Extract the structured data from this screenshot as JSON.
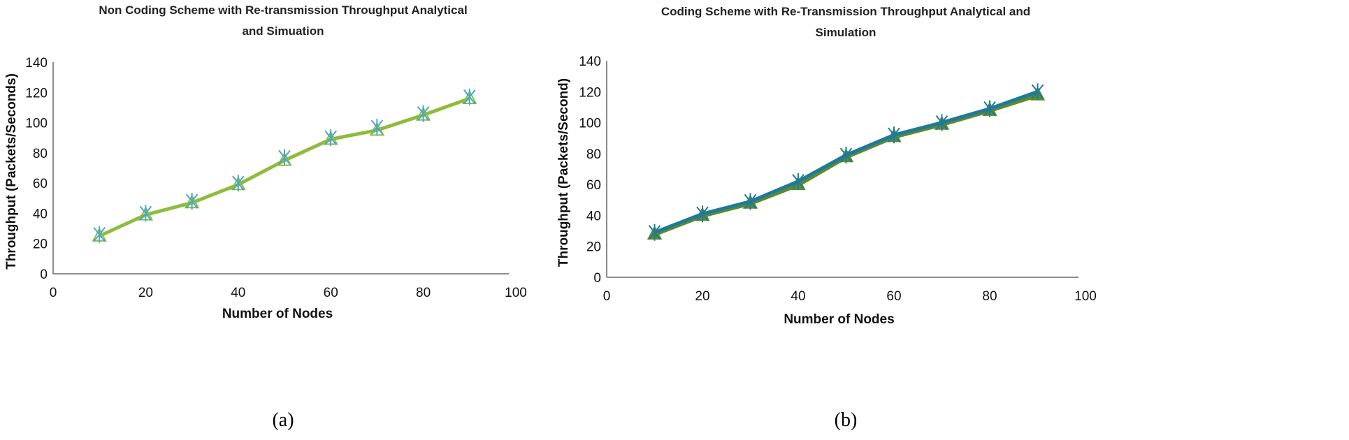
{
  "chart_data": [
    {
      "type": "line",
      "title_lines": [
        "Non Coding Scheme with Re-transmission Throughput Analytical",
        "and Simuation"
      ],
      "xlabel": "Number of Nodes",
      "ylabel": "Throughput (Packets/Seconds)",
      "caption": "(a)",
      "xlim": [
        0,
        100
      ],
      "ylim": [
        0,
        140
      ],
      "xticks": [
        0,
        20,
        40,
        60,
        80,
        100
      ],
      "yticks": [
        0,
        20,
        40,
        60,
        80,
        100,
        120,
        140
      ],
      "grid": false,
      "x": [
        10,
        20,
        30,
        40,
        50,
        60,
        70,
        80,
        90
      ],
      "series": [
        {
          "marker": "triangle",
          "color": "#8fbc3c",
          "values": [
            25,
            39,
            47,
            59,
            75,
            89,
            95,
            105,
            116
          ]
        },
        {
          "marker": "star",
          "color": "#4aa8c8",
          "values": [
            26,
            40,
            48,
            60,
            77,
            90,
            97,
            106,
            117
          ]
        }
      ]
    },
    {
      "type": "line",
      "title_lines": [
        "Coding Scheme with Re-Transmission  Throughput Analytical and",
        "Simulation"
      ],
      "xlabel": "Number of Nodes",
      "ylabel": "Throughput (Packets/Second)",
      "caption": "(b)",
      "xlim": [
        0,
        100
      ],
      "ylim": [
        0,
        140
      ],
      "xticks": [
        0,
        20,
        40,
        60,
        80,
        100
      ],
      "yticks": [
        0,
        20,
        40,
        60,
        80,
        100,
        120,
        140
      ],
      "grid": false,
      "x": [
        10,
        20,
        30,
        40,
        50,
        60,
        70,
        80,
        90
      ],
      "series": [
        {
          "marker": "triangle",
          "color": "#5e8a2e",
          "values": [
            28,
            40,
            48,
            60,
            78,
            91,
            99,
            108,
            118
          ]
        },
        {
          "marker": "star",
          "color": "#1f7a9a",
          "values": [
            29,
            41,
            49,
            62,
            79,
            92,
            100,
            109,
            120
          ]
        }
      ]
    }
  ]
}
